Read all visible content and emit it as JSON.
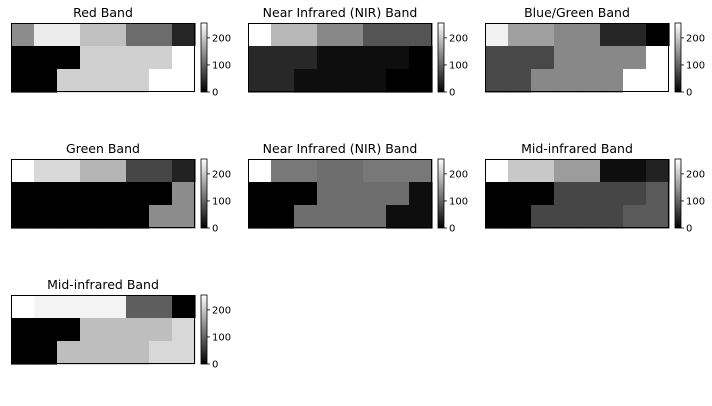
{
  "chart_data": [
    {
      "type": "heatmap",
      "title": "Red Band",
      "colormap": "gray",
      "clim": [
        0,
        255
      ],
      "colorbar_ticks": [
        "0",
        "100",
        "200"
      ],
      "rows": 3,
      "cols": 8,
      "values": [
        [
          140,
          236,
          236,
          192,
          192,
          108,
          108,
          38
        ],
        [
          0,
          0,
          0,
          208,
          208,
          208,
          208,
          255
        ],
        [
          0,
          0,
          208,
          208,
          208,
          208,
          255,
          255
        ]
      ]
    },
    {
      "type": "heatmap",
      "title": "Near Infrared (NIR) Band",
      "colormap": "gray",
      "clim": [
        0,
        255
      ],
      "colorbar_ticks": [
        "0",
        "100",
        "200"
      ],
      "rows": 3,
      "cols": 8,
      "values": [
        [
          255,
          184,
          184,
          136,
          136,
          84,
          84,
          84
        ],
        [
          40,
          40,
          40,
          14,
          14,
          14,
          14,
          0
        ],
        [
          40,
          40,
          14,
          14,
          14,
          14,
          0,
          0
        ]
      ]
    },
    {
      "type": "heatmap",
      "title": "Blue/Green Band",
      "colormap": "gray",
      "clim": [
        0,
        255
      ],
      "colorbar_ticks": [
        "0",
        "100",
        "200"
      ],
      "rows": 3,
      "cols": 8,
      "values": [
        [
          242,
          160,
          160,
          136,
          136,
          38,
          38,
          0
        ],
        [
          72,
          72,
          72,
          136,
          136,
          136,
          136,
          255
        ],
        [
          72,
          72,
          136,
          136,
          136,
          136,
          255,
          255
        ]
      ]
    },
    {
      "type": "heatmap",
      "title": "Green Band",
      "colormap": "gray",
      "clim": [
        0,
        255
      ],
      "colorbar_ticks": [
        "0",
        "100",
        "200"
      ],
      "rows": 3,
      "cols": 8,
      "values": [
        [
          255,
          216,
          216,
          180,
          180,
          70,
          70,
          34
        ],
        [
          0,
          0,
          0,
          0,
          0,
          0,
          0,
          140
        ],
        [
          0,
          0,
          0,
          0,
          0,
          0,
          140,
          140
        ]
      ]
    },
    {
      "type": "heatmap",
      "title": "Near Infrared (NIR) Band",
      "colormap": "gray",
      "clim": [
        0,
        255
      ],
      "colorbar_ticks": [
        "0",
        "100",
        "200"
      ],
      "rows": 3,
      "cols": 8,
      "values": [
        [
          255,
          120,
          120,
          110,
          110,
          120,
          120,
          120
        ],
        [
          0,
          0,
          0,
          110,
          110,
          110,
          110,
          14
        ],
        [
          0,
          0,
          110,
          110,
          110,
          110,
          14,
          14
        ]
      ]
    },
    {
      "type": "heatmap",
      "title": "Mid-infrared Band",
      "colormap": "gray",
      "clim": [
        0,
        255
      ],
      "colorbar_ticks": [
        "0",
        "100",
        "200"
      ],
      "rows": 3,
      "cols": 8,
      "values": [
        [
          255,
          200,
          200,
          156,
          156,
          14,
          14,
          34
        ],
        [
          0,
          0,
          0,
          70,
          70,
          70,
          70,
          90
        ],
        [
          0,
          0,
          70,
          70,
          70,
          70,
          90,
          90
        ]
      ]
    },
    {
      "type": "heatmap",
      "title": "Mid-infrared Band",
      "colormap": "gray",
      "clim": [
        0,
        255
      ],
      "colorbar_ticks": [
        "0",
        "100",
        "200"
      ],
      "rows": 3,
      "cols": 8,
      "values": [
        [
          255,
          244,
          244,
          244,
          244,
          94,
          94,
          0
        ],
        [
          0,
          0,
          0,
          190,
          190,
          190,
          190,
          216
        ],
        [
          0,
          0,
          190,
          190,
          190,
          190,
          216,
          216
        ]
      ]
    }
  ]
}
